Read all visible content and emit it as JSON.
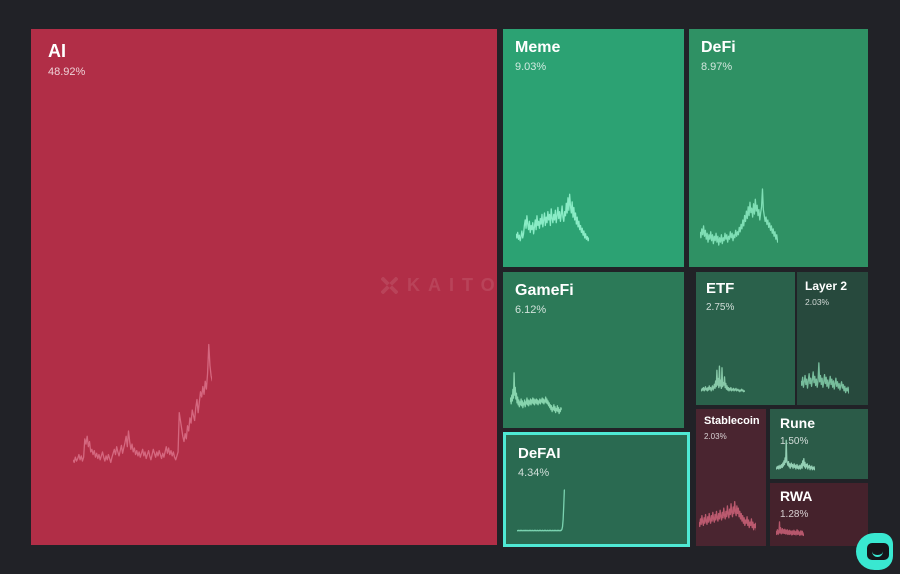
{
  "watermark": {
    "text": "KAITO"
  },
  "highlight_color": "#4fe9d4",
  "background_color": "#212227",
  "chart_data": {
    "type": "treemap",
    "categories": [
      "AI",
      "Meme",
      "DeFi",
      "GameFi",
      "ETF",
      "Layer 2",
      "DeFAI",
      "Stablecoin",
      "Rune",
      "RWA"
    ],
    "values": [
      48.92,
      9.03,
      8.97,
      6.12,
      2.75,
      2.03,
      4.34,
      2.03,
      1.5,
      1.28
    ],
    "value_unit": "%",
    "legend": "none",
    "grid": false,
    "selected_category": "DeFAI",
    "note": "each tile contains an unlabeled mindshare-trend sparkline; estimated series stored in tiles[].spark"
  },
  "tiles": [
    {
      "id": "ai",
      "label": "AI",
      "pct": "48.92%",
      "value": 48.92,
      "color": "#b12e47",
      "spark_color": "#d76b82",
      "selected": false,
      "spark": [
        12,
        10,
        14,
        11,
        13,
        16,
        12,
        15,
        11,
        14,
        28,
        24,
        30,
        22,
        26,
        18,
        20,
        16,
        19,
        14,
        17,
        13,
        16,
        12,
        15,
        18,
        14,
        11,
        15,
        12,
        16,
        13,
        10,
        14,
        17,
        20,
        16,
        22,
        18,
        15,
        19,
        23,
        17,
        21,
        25,
        30,
        22,
        34,
        26,
        20,
        24,
        18,
        21,
        16,
        19,
        15,
        18,
        14,
        17,
        20,
        15,
        18,
        13,
        16,
        19,
        15,
        12,
        16,
        20,
        17,
        14,
        18,
        15,
        19,
        16,
        13,
        17,
        14,
        18,
        22,
        17,
        21,
        16,
        19,
        15,
        18,
        14,
        12,
        15,
        18,
        48,
        42,
        36,
        30,
        26,
        32,
        28,
        38,
        34,
        44,
        40,
        50,
        46,
        42,
        52,
        58,
        48,
        56,
        64,
        60,
        68,
        62,
        72,
        66,
        78,
        100,
        84,
        76,
        72
      ]
    },
    {
      "id": "meme",
      "label": "Meme",
      "pct": "9.03%",
      "value": 9.03,
      "color": "#2ca273",
      "spark_color": "#90f0cb",
      "selected": false,
      "spark": [
        18,
        12,
        20,
        10,
        16,
        8,
        14,
        22,
        12,
        18,
        30,
        38,
        26,
        44,
        32,
        24,
        36,
        20,
        30,
        24,
        34,
        18,
        28,
        38,
        24,
        44,
        30,
        36,
        26,
        40,
        32,
        46,
        28,
        38,
        48,
        30,
        42,
        34,
        50,
        38,
        46,
        30,
        54,
        40,
        34,
        46,
        38,
        52,
        34,
        44,
        56,
        40,
        50,
        36,
        46,
        58,
        42,
        36,
        50,
        44,
        62,
        48,
        70,
        52,
        75,
        58,
        48,
        64,
        42,
        56,
        38,
        48,
        32,
        42,
        28,
        36,
        24,
        30,
        20,
        26,
        16,
        22,
        12,
        18,
        10,
        14,
        8,
        12,
        6
      ]
    },
    {
      "id": "defi",
      "label": "DeFi",
      "pct": "8.97%",
      "value": 8.97,
      "color": "#2f9164",
      "spark_color": "#84e4ba",
      "selected": false,
      "spark": [
        30,
        22,
        34,
        26,
        38,
        24,
        32,
        20,
        28,
        16,
        26,
        20,
        30,
        18,
        26,
        14,
        24,
        18,
        28,
        16,
        24,
        12,
        22,
        16,
        26,
        14,
        22,
        18,
        28,
        20,
        26,
        16,
        24,
        20,
        30,
        22,
        28,
        18,
        26,
        22,
        32,
        24,
        30,
        26,
        36,
        30,
        40,
        34,
        46,
        38,
        52,
        44,
        58,
        48,
        64,
        52,
        70,
        56,
        62,
        50,
        68,
        54,
        74,
        58,
        66,
        52,
        60,
        46,
        56,
        64,
        88,
        60,
        52,
        44,
        50,
        40,
        46,
        36,
        42,
        32,
        38,
        28,
        34,
        24,
        30,
        20,
        26,
        16,
        20
      ]
    },
    {
      "id": "gamefi",
      "label": "GameFi",
      "pct": "6.12%",
      "value": 6.12,
      "color": "#2c7a58",
      "spark_color": "#8cd9b2",
      "selected": false,
      "spark": [
        30,
        38,
        26,
        44,
        32,
        56,
        38,
        90,
        44,
        60,
        36,
        48,
        28,
        40,
        24,
        34,
        20,
        30,
        24,
        36,
        22,
        32,
        18,
        28,
        24,
        34,
        20,
        30,
        26,
        38,
        24,
        34,
        22,
        32,
        26,
        36,
        24,
        34,
        28,
        38,
        26,
        36,
        24,
        34,
        28,
        36,
        26,
        34,
        24,
        32,
        28,
        36,
        26,
        34,
        30,
        38,
        28,
        36,
        26,
        34,
        30,
        40,
        28,
        36,
        26,
        32,
        22,
        28,
        18,
        24,
        14,
        22,
        10,
        18,
        14,
        24,
        12,
        20,
        8,
        16,
        12,
        22,
        10,
        18,
        6,
        14,
        10,
        18,
        14
      ]
    },
    {
      "id": "etf",
      "label": "ETF",
      "pct": "2.75%",
      "value": 2.75,
      "color": "#2a614b",
      "spark_color": "#8ccfae",
      "selected": false,
      "spark": [
        14,
        10,
        16,
        12,
        18,
        10,
        14,
        20,
        12,
        16,
        10,
        18,
        12,
        22,
        14,
        18,
        10,
        16,
        22,
        12,
        18,
        26,
        16,
        34,
        20,
        60,
        24,
        40,
        18,
        70,
        22,
        36,
        16,
        66,
        20,
        30,
        24,
        44,
        18,
        28,
        14,
        22,
        12,
        18,
        10,
        16,
        12,
        18,
        10,
        14,
        12,
        16,
        10,
        14,
        12,
        16,
        10,
        12,
        14,
        10,
        12,
        8,
        12,
        10,
        14,
        10,
        12,
        8,
        10,
        8
      ]
    },
    {
      "id": "layer2",
      "label": "Layer 2",
      "pct": "2.03%",
      "value": 2.03,
      "color": "#27493d",
      "spark_color": "#7cc4a2",
      "selected": false,
      "spark": [
        40,
        30,
        48,
        26,
        38,
        52,
        32,
        44,
        24,
        40,
        56,
        34,
        46,
        28,
        42,
        60,
        36,
        50,
        30,
        44,
        26,
        40,
        80,
        38,
        52,
        32,
        46,
        26,
        38,
        54,
        34,
        48,
        28,
        42,
        24,
        36,
        50,
        32,
        44,
        26,
        40,
        22,
        34,
        46,
        28,
        38,
        24,
        34,
        20,
        30,
        38,
        24,
        32,
        18,
        28,
        14,
        24,
        18,
        26,
        12
      ]
    },
    {
      "id": "defai",
      "label": "DeFAI",
      "pct": "4.34%",
      "value": 4.34,
      "color": "#2a6a51",
      "spark_color": "#7fd9b6",
      "selected": true,
      "spark": [
        5,
        5,
        6,
        5,
        5,
        6,
        5,
        6,
        5,
        5,
        6,
        5,
        5,
        6,
        5,
        6,
        5,
        5,
        6,
        5,
        5,
        6,
        5,
        6,
        5,
        5,
        6,
        5,
        5,
        6,
        5,
        6,
        5,
        5,
        6,
        5,
        5,
        6,
        5,
        6,
        5,
        5,
        6,
        5,
        5,
        6,
        5,
        6,
        5,
        5,
        6,
        5,
        5,
        6,
        5,
        6,
        5,
        5,
        6,
        5,
        5,
        6,
        5,
        6,
        5,
        5,
        6,
        5,
        6,
        5,
        5,
        6,
        5,
        6,
        8,
        14,
        30,
        60,
        95,
        96
      ]
    },
    {
      "id": "stablecoin",
      "label": "Stablecoin",
      "pct": "2.03%",
      "value": 2.03,
      "color": "#4a2530",
      "spark_color": "#c05c72",
      "selected": false,
      "spark": [
        30,
        22,
        36,
        26,
        42,
        30,
        24,
        38,
        28,
        44,
        32,
        26,
        40,
        30,
        46,
        34,
        28,
        42,
        32,
        48,
        36,
        30,
        44,
        34,
        50,
        38,
        32,
        46,
        36,
        52,
        40,
        34,
        48,
        38,
        56,
        42,
        36,
        50,
        40,
        60,
        46,
        38,
        54,
        44,
        64,
        48,
        40,
        58,
        46,
        68,
        50,
        42,
        60,
        46,
        56,
        40,
        50,
        36,
        46,
        32,
        42,
        28,
        38,
        24,
        34,
        28,
        40,
        24,
        34,
        20,
        30,
        24,
        36,
        20,
        30,
        16,
        26,
        20,
        28,
        14
      ]
    },
    {
      "id": "rune",
      "label": "Rune",
      "pct": "1.50%",
      "value": 1.5,
      "color": "#2b5b48",
      "spark_color": "#99d6ba",
      "selected": false,
      "spark": [
        16,
        12,
        18,
        14,
        20,
        12,
        16,
        22,
        14,
        18,
        24,
        16,
        28,
        20,
        34,
        24,
        42,
        30,
        90,
        36,
        28,
        22,
        32,
        18,
        26,
        14,
        22,
        28,
        18,
        24,
        14,
        20,
        26,
        16,
        22,
        12,
        18,
        24,
        14,
        20,
        12,
        16,
        22,
        12,
        18,
        26,
        14,
        34,
        22,
        40,
        18,
        30,
        14,
        24,
        18,
        26,
        12,
        20,
        16,
        22,
        10,
        18,
        14,
        20,
        10,
        16,
        12,
        18,
        10,
        14
      ]
    },
    {
      "id": "rwa",
      "label": "RWA",
      "pct": "1.28%",
      "value": 1.28,
      "color": "#45222c",
      "spark_color": "#bd5a70",
      "selected": false,
      "spark": [
        30,
        22,
        34,
        26,
        40,
        28,
        22,
        36,
        26,
        44,
        70,
        36,
        28,
        48,
        32,
        24,
        38,
        28,
        44,
        32,
        26,
        40,
        30,
        36,
        26,
        42,
        30,
        24,
        38,
        28,
        34,
        24,
        40,
        28,
        22,
        36,
        26,
        32,
        22,
        38,
        28,
        24,
        34,
        24,
        30,
        20,
        36,
        26,
        22,
        32,
        24,
        38,
        26,
        22,
        34,
        24,
        30,
        20,
        34,
        24,
        40,
        28,
        22,
        36,
        26,
        32,
        22,
        28,
        18,
        32,
        22,
        36,
        24,
        30,
        20,
        34,
        24,
        28,
        18,
        24
      ]
    }
  ]
}
